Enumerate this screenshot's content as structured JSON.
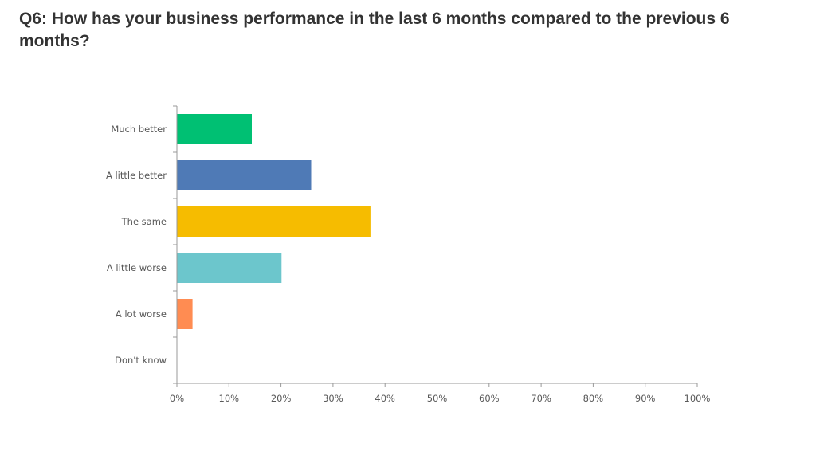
{
  "slide": {
    "title": "Q6: How has your business performance in the last 6 months compared to the previous 6 months?"
  },
  "chart_data": {
    "type": "bar",
    "orientation": "horizontal",
    "categories": [
      "Much better",
      "A little better",
      "The same",
      "A little worse",
      "A lot worse",
      "Don't know"
    ],
    "values": [
      14.4,
      25.8,
      37.2,
      20.1,
      3.0,
      0
    ],
    "colors": [
      "#00c073",
      "#4f7ab6",
      "#f6bc00",
      "#6cc6cc",
      "#ff8c52",
      "#cccccc"
    ],
    "xlim": [
      0,
      100
    ],
    "xticks": [
      "0%",
      "10%",
      "20%",
      "30%",
      "40%",
      "50%",
      "60%",
      "70%",
      "80%",
      "90%",
      "100%"
    ],
    "xlabel": "",
    "ylabel": "",
    "grid": false,
    "legend": "none"
  }
}
